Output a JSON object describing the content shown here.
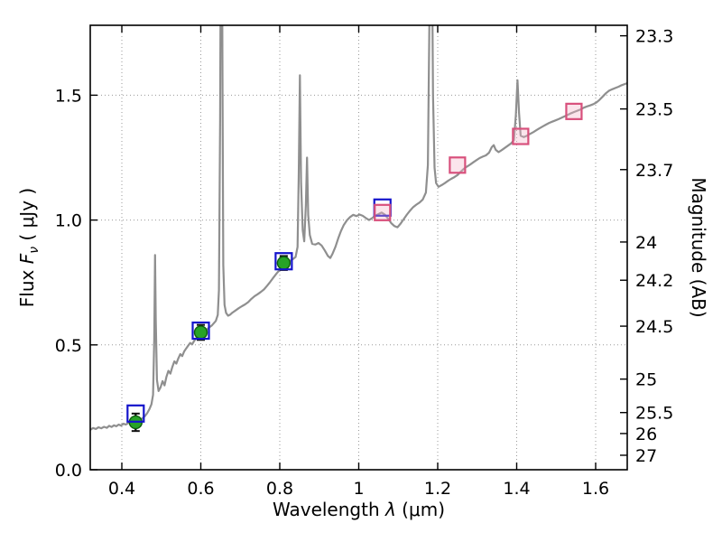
{
  "labels": {
    "x": {
      "word": "Wavelength ",
      "symbol": "λ",
      "units": " (μm)"
    },
    "left": {
      "word": "Flux ",
      "symbol": "F",
      "sub": "ν",
      "units": " ( μJy )"
    },
    "right": {
      "text": "Magnitude (AB)"
    }
  },
  "chart_data": {
    "type": "line",
    "title": "",
    "xlabel": "Wavelength λ (μm)",
    "ylabel_left": "Flux Fν ( μJy )",
    "ylabel_right": "Magnitude (AB)",
    "xlim": [
      0.32,
      1.68
    ],
    "ylim": [
      0,
      1.78
    ],
    "grid": {
      "on": true,
      "style": "dotted",
      "color": "#9a9a9a"
    },
    "legend": "none",
    "x_ticks": [
      {
        "value": 0.4,
        "label": "0.4"
      },
      {
        "value": 0.6,
        "label": "0.6"
      },
      {
        "value": 0.8,
        "label": "0.8"
      },
      {
        "value": 1.0,
        "label": "1"
      },
      {
        "value": 1.2,
        "label": "1.2"
      },
      {
        "value": 1.4,
        "label": "1.4"
      },
      {
        "value": 1.6,
        "label": "1.6"
      }
    ],
    "y_ticks_left": [
      {
        "value": 0.0,
        "label": "0.0"
      },
      {
        "value": 0.5,
        "label": "0.5"
      },
      {
        "value": 1.0,
        "label": "1.0"
      },
      {
        "value": 1.5,
        "label": "1.5"
      }
    ],
    "y_ticks_right": [
      {
        "label": "23.3",
        "flux": 1.738
      },
      {
        "label": "23.5",
        "flux": 1.445
      },
      {
        "label": "23.7",
        "flux": 1.202
      },
      {
        "label": "24",
        "flux": 0.912
      },
      {
        "label": "24.2",
        "flux": 0.759
      },
      {
        "label": "24.5",
        "flux": 0.575
      },
      {
        "label": "25",
        "flux": 0.363
      },
      {
        "label": "25.5",
        "flux": 0.229
      },
      {
        "label": "26",
        "flux": 0.145
      },
      {
        "label": "27",
        "flux": 0.058
      }
    ],
    "series": [
      {
        "name": "spectrum",
        "type": "line",
        "color": "#8f8f8f",
        "width": 2.2,
        "points": [
          [
            0.32,
            0.16
          ],
          [
            0.327,
            0.167
          ],
          [
            0.334,
            0.163
          ],
          [
            0.341,
            0.17
          ],
          [
            0.348,
            0.166
          ],
          [
            0.355,
            0.172
          ],
          [
            0.362,
            0.168
          ],
          [
            0.368,
            0.176
          ],
          [
            0.374,
            0.171
          ],
          [
            0.38,
            0.178
          ],
          [
            0.386,
            0.174
          ],
          [
            0.392,
            0.181
          ],
          [
            0.398,
            0.177
          ],
          [
            0.404,
            0.184
          ],
          [
            0.41,
            0.181
          ],
          [
            0.416,
            0.187
          ],
          [
            0.422,
            0.19
          ],
          [
            0.428,
            0.186
          ],
          [
            0.434,
            0.193
          ],
          [
            0.44,
            0.196
          ],
          [
            0.446,
            0.2
          ],
          [
            0.452,
            0.206
          ],
          [
            0.458,
            0.214
          ],
          [
            0.464,
            0.226
          ],
          [
            0.47,
            0.243
          ],
          [
            0.475,
            0.262
          ],
          [
            0.479,
            0.3
          ],
          [
            0.482,
            0.52
          ],
          [
            0.484,
            0.86
          ],
          [
            0.486,
            0.6
          ],
          [
            0.489,
            0.36
          ],
          [
            0.493,
            0.315
          ],
          [
            0.498,
            0.33
          ],
          [
            0.503,
            0.355
          ],
          [
            0.508,
            0.338
          ],
          [
            0.513,
            0.372
          ],
          [
            0.518,
            0.396
          ],
          [
            0.523,
            0.385
          ],
          [
            0.528,
            0.412
          ],
          [
            0.533,
            0.434
          ],
          [
            0.538,
            0.425
          ],
          [
            0.543,
            0.446
          ],
          [
            0.548,
            0.463
          ],
          [
            0.553,
            0.455
          ],
          [
            0.558,
            0.474
          ],
          [
            0.563,
            0.486
          ],
          [
            0.568,
            0.497
          ],
          [
            0.573,
            0.508
          ],
          [
            0.578,
            0.502
          ],
          [
            0.583,
            0.516
          ],
          [
            0.588,
            0.526
          ],
          [
            0.593,
            0.536
          ],
          [
            0.598,
            0.542
          ],
          [
            0.603,
            0.548
          ],
          [
            0.608,
            0.553
          ],
          [
            0.613,
            0.558
          ],
          [
            0.618,
            0.566
          ],
          [
            0.623,
            0.572
          ],
          [
            0.628,
            0.578
          ],
          [
            0.633,
            0.587
          ],
          [
            0.638,
            0.596
          ],
          [
            0.643,
            0.62
          ],
          [
            0.646,
            0.72
          ],
          [
            0.649,
            1.4
          ],
          [
            0.651,
            2.3
          ],
          [
            0.653,
            2.4
          ],
          [
            0.655,
            1.5
          ],
          [
            0.657,
            0.82
          ],
          [
            0.66,
            0.66
          ],
          [
            0.664,
            0.628
          ],
          [
            0.669,
            0.617
          ],
          [
            0.674,
            0.621
          ],
          [
            0.68,
            0.629
          ],
          [
            0.688,
            0.638
          ],
          [
            0.696,
            0.647
          ],
          [
            0.704,
            0.655
          ],
          [
            0.712,
            0.662
          ],
          [
            0.72,
            0.671
          ],
          [
            0.728,
            0.684
          ],
          [
            0.736,
            0.695
          ],
          [
            0.744,
            0.703
          ],
          [
            0.752,
            0.712
          ],
          [
            0.76,
            0.722
          ],
          [
            0.768,
            0.737
          ],
          [
            0.776,
            0.753
          ],
          [
            0.784,
            0.77
          ],
          [
            0.792,
            0.786
          ],
          [
            0.8,
            0.801
          ],
          [
            0.808,
            0.816
          ],
          [
            0.816,
            0.827
          ],
          [
            0.824,
            0.835
          ],
          [
            0.832,
            0.842
          ],
          [
            0.84,
            0.852
          ],
          [
            0.845,
            0.892
          ],
          [
            0.848,
            1.18
          ],
          [
            0.851,
            1.58
          ],
          [
            0.854,
            1.15
          ],
          [
            0.858,
            0.96
          ],
          [
            0.862,
            0.915
          ],
          [
            0.866,
            1.06
          ],
          [
            0.869,
            1.25
          ],
          [
            0.872,
            1.02
          ],
          [
            0.876,
            0.94
          ],
          [
            0.882,
            0.905
          ],
          [
            0.89,
            0.902
          ],
          [
            0.898,
            0.908
          ],
          [
            0.906,
            0.898
          ],
          [
            0.914,
            0.878
          ],
          [
            0.922,
            0.856
          ],
          [
            0.928,
            0.848
          ],
          [
            0.934,
            0.866
          ],
          [
            0.941,
            0.893
          ],
          [
            0.948,
            0.927
          ],
          [
            0.955,
            0.956
          ],
          [
            0.962,
            0.98
          ],
          [
            0.97,
            0.999
          ],
          [
            0.978,
            1.012
          ],
          [
            0.986,
            1.021
          ],
          [
            0.994,
            1.016
          ],
          [
            1.002,
            1.022
          ],
          [
            1.01,
            1.017
          ],
          [
            1.018,
            1.008
          ],
          [
            1.026,
            1.0
          ],
          [
            1.034,
            1.008
          ],
          [
            1.042,
            1.017
          ],
          [
            1.05,
            1.024
          ],
          [
            1.058,
            1.03
          ],
          [
            1.066,
            1.022
          ],
          [
            1.074,
            1.006
          ],
          [
            1.082,
            0.988
          ],
          [
            1.09,
            0.976
          ],
          [
            1.098,
            0.971
          ],
          [
            1.106,
            0.986
          ],
          [
            1.114,
            1.004
          ],
          [
            1.122,
            1.022
          ],
          [
            1.13,
            1.038
          ],
          [
            1.138,
            1.052
          ],
          [
            1.146,
            1.062
          ],
          [
            1.154,
            1.07
          ],
          [
            1.162,
            1.082
          ],
          [
            1.17,
            1.11
          ],
          [
            1.175,
            1.22
          ],
          [
            1.179,
            1.8
          ],
          [
            1.182,
            2.4
          ],
          [
            1.185,
            2.2
          ],
          [
            1.188,
            1.5
          ],
          [
            1.192,
            1.21
          ],
          [
            1.196,
            1.148
          ],
          [
            1.202,
            1.133
          ],
          [
            1.21,
            1.14
          ],
          [
            1.218,
            1.148
          ],
          [
            1.226,
            1.157
          ],
          [
            1.234,
            1.165
          ],
          [
            1.242,
            1.172
          ],
          [
            1.25,
            1.18
          ],
          [
            1.258,
            1.193
          ],
          [
            1.266,
            1.205
          ],
          [
            1.274,
            1.214
          ],
          [
            1.282,
            1.222
          ],
          [
            1.29,
            1.231
          ],
          [
            1.298,
            1.24
          ],
          [
            1.306,
            1.248
          ],
          [
            1.314,
            1.254
          ],
          [
            1.322,
            1.259
          ],
          [
            1.33,
            1.27
          ],
          [
            1.337,
            1.292
          ],
          [
            1.342,
            1.3
          ],
          [
            1.347,
            1.281
          ],
          [
            1.354,
            1.272
          ],
          [
            1.362,
            1.28
          ],
          [
            1.37,
            1.289
          ],
          [
            1.378,
            1.298
          ],
          [
            1.386,
            1.307
          ],
          [
            1.393,
            1.32
          ],
          [
            1.398,
            1.42
          ],
          [
            1.402,
            1.56
          ],
          [
            1.406,
            1.43
          ],
          [
            1.41,
            1.338
          ],
          [
            1.418,
            1.332
          ],
          [
            1.426,
            1.338
          ],
          [
            1.434,
            1.345
          ],
          [
            1.442,
            1.352
          ],
          [
            1.45,
            1.36
          ],
          [
            1.458,
            1.368
          ],
          [
            1.466,
            1.375
          ],
          [
            1.474,
            1.382
          ],
          [
            1.482,
            1.389
          ],
          [
            1.49,
            1.394
          ],
          [
            1.498,
            1.399
          ],
          [
            1.506,
            1.404
          ],
          [
            1.514,
            1.41
          ],
          [
            1.522,
            1.416
          ],
          [
            1.53,
            1.422
          ],
          [
            1.538,
            1.428
          ],
          [
            1.546,
            1.433
          ],
          [
            1.554,
            1.438
          ],
          [
            1.562,
            1.443
          ],
          [
            1.57,
            1.45
          ],
          [
            1.578,
            1.455
          ],
          [
            1.586,
            1.459
          ],
          [
            1.594,
            1.464
          ],
          [
            1.602,
            1.471
          ],
          [
            1.61,
            1.482
          ],
          [
            1.618,
            1.495
          ],
          [
            1.626,
            1.508
          ],
          [
            1.634,
            1.518
          ],
          [
            1.642,
            1.524
          ],
          [
            1.65,
            1.529
          ],
          [
            1.658,
            1.534
          ],
          [
            1.666,
            1.54
          ],
          [
            1.674,
            1.545
          ],
          [
            1.68,
            1.548
          ]
        ]
      },
      {
        "name": "observed-photometry",
        "type": "scatter",
        "marker": "circle",
        "fill": "#27a327",
        "edge": "#0d5d0d",
        "errorbar_color": "#111111",
        "points": [
          {
            "x": 0.435,
            "y": 0.19,
            "yerr": 0.035
          },
          {
            "x": 0.6,
            "y": 0.55,
            "yerr": 0.03
          },
          {
            "x": 0.81,
            "y": 0.828,
            "yerr": 0.028
          }
        ]
      },
      {
        "name": "model-photometry",
        "type": "scatter",
        "marker": "square-open",
        "edge": "#1414cc",
        "fill": "none",
        "size": 18,
        "points": [
          {
            "x": 0.435,
            "y": 0.225
          },
          {
            "x": 0.6,
            "y": 0.557
          },
          {
            "x": 0.81,
            "y": 0.835
          },
          {
            "x": 1.06,
            "y": 1.05
          }
        ]
      },
      {
        "name": "predicted-photometry",
        "type": "scatter",
        "marker": "square-open",
        "edge": "#d8507c",
        "fill": "rgba(244,180,200,0.35)",
        "size": 17,
        "points": [
          {
            "x": 1.06,
            "y": 1.03
          },
          {
            "x": 1.25,
            "y": 1.22
          },
          {
            "x": 1.41,
            "y": 1.335
          },
          {
            "x": 1.545,
            "y": 1.435
          }
        ]
      }
    ]
  }
}
